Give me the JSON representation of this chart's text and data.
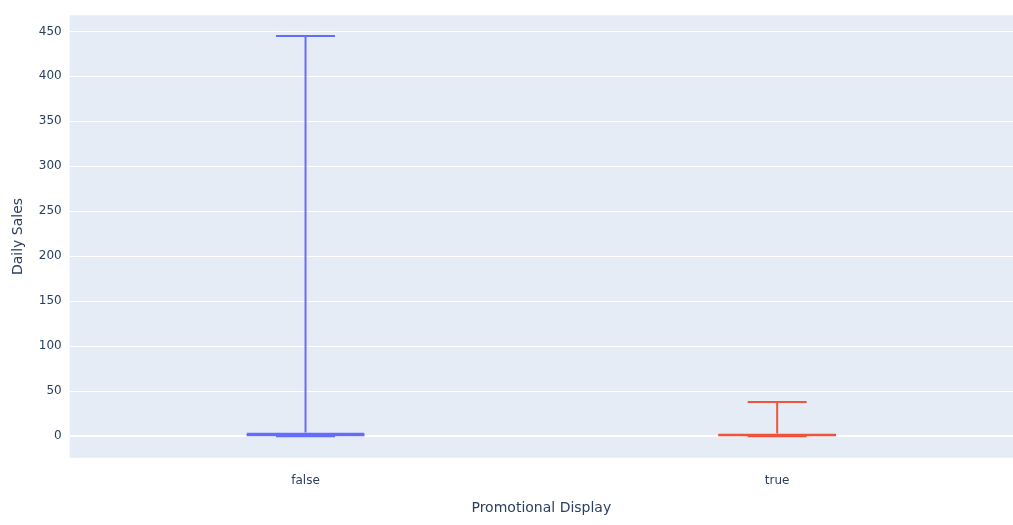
{
  "chart_data": {
    "type": "box",
    "xlabel": "Promotional Display",
    "ylabel": "Daily Sales",
    "categories": [
      "false",
      "true"
    ],
    "boxes": [
      {
        "low": 0,
        "q1": 0,
        "median": 1,
        "q3": 4,
        "high": 445
      },
      {
        "low": 0,
        "q1": 0,
        "median": 1,
        "q3": 3,
        "high": 38
      }
    ],
    "colors": [
      "#636efa",
      "#ef553b"
    ],
    "ylim": [
      -24,
      468
    ],
    "yticks": [
      0,
      50,
      100,
      150,
      200,
      250,
      300,
      350,
      400,
      450
    ],
    "grid": "y",
    "legend": false
  }
}
